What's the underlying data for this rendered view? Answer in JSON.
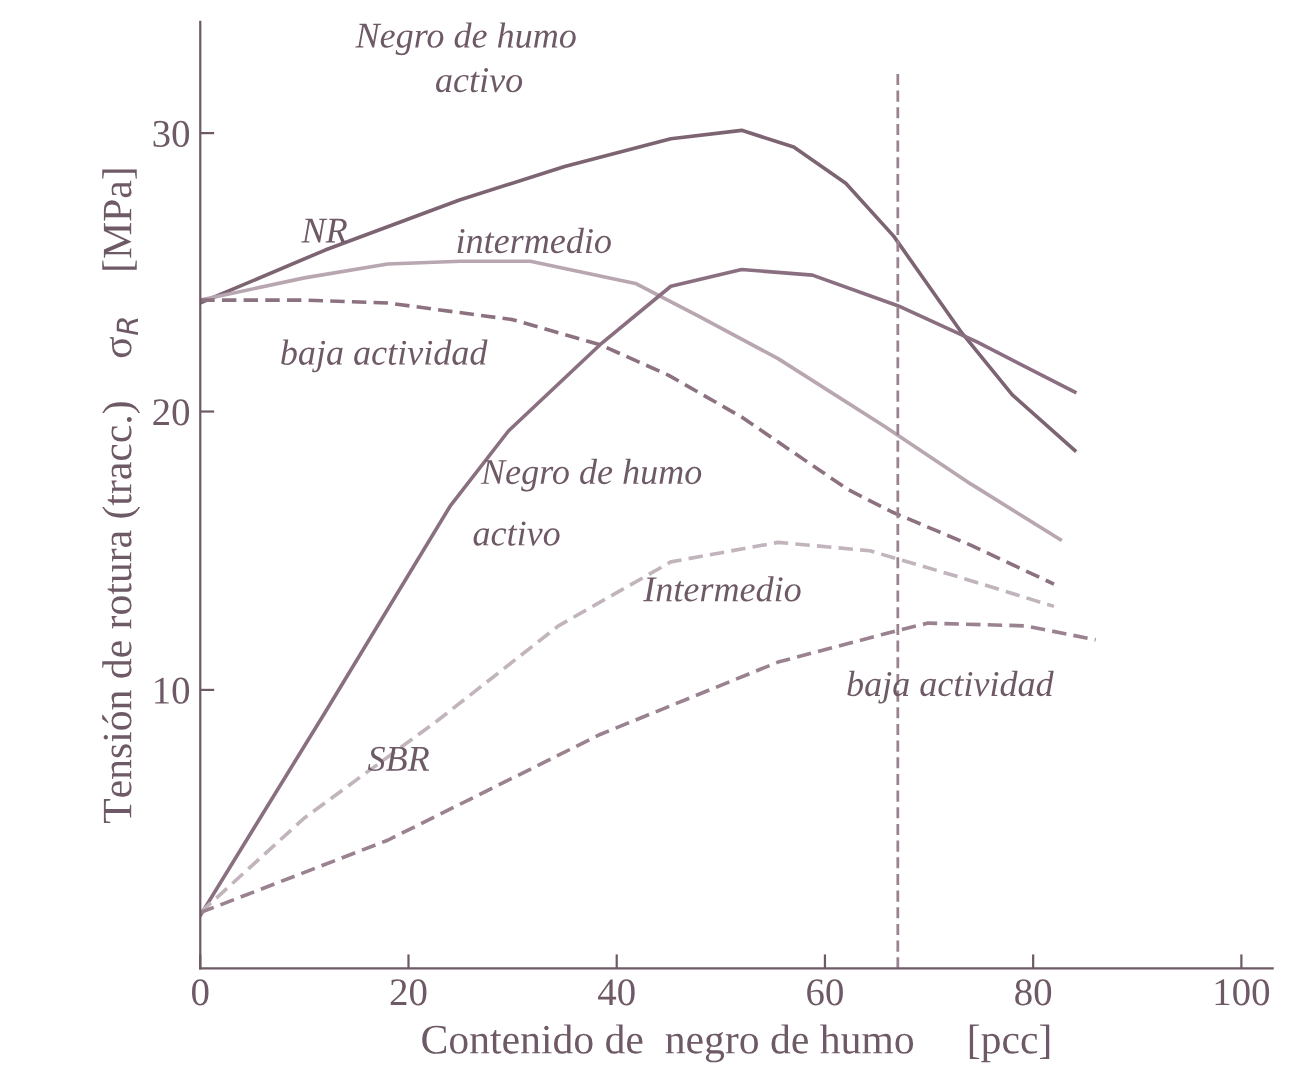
{
  "chart_data": {
    "type": "line",
    "xlabel": "Contenido de  negro de humo     [pcc]",
    "ylabel": "Tensión de rotura (tracc.)    σ$_{R}$    [MPa]",
    "xlim": [
      0,
      103
    ],
    "ylim": [
      0,
      34
    ],
    "xticks": [
      0,
      20,
      40,
      60,
      80,
      100
    ],
    "yticks": [
      10,
      20,
      30
    ],
    "grid": false,
    "legend": false,
    "marker": "none",
    "series": [
      {
        "color": "#7d6473",
        "line_style": "solid",
        "x": [
          0,
          12,
          24.9,
          35,
          45.2,
          52,
          57,
          62,
          66.6,
          73,
          78,
          84
        ],
        "values": [
          23.9,
          25.8,
          27.6,
          28.8,
          29.8,
          30.1,
          29.5,
          28.2,
          26.3,
          22.9,
          20.6,
          18.6
        ]
      },
      {
        "color": "#b8a6b0",
        "line_style": "solid",
        "x": [
          0,
          10,
          18,
          25,
          31.7,
          41.8,
          48,
          55.5,
          65.6,
          74,
          82.6
        ],
        "values": [
          24,
          24.8,
          25.3,
          25.4,
          25.4,
          24.6,
          23.4,
          21.9,
          19.5,
          17.4,
          15.4
        ]
      },
      {
        "color": "#8c7280",
        "line_style": "dashed",
        "x": [
          0,
          10,
          18,
          30,
          38.4,
          45,
          52,
          62.2,
          66.4,
          74,
          82
        ],
        "values": [
          24,
          24,
          23.9,
          23.3,
          22.4,
          21.3,
          19.8,
          17.2,
          16.4,
          15.2,
          13.8
        ]
      },
      {
        "color": "#8a6f80",
        "line_style": "solid",
        "x": [
          0,
          12,
          24,
          29.6,
          38.4,
          45.2,
          52,
          58.8,
          67,
          74.6,
          84
        ],
        "values": [
          1.9,
          9.2,
          16.6,
          19.3,
          22.4,
          24.5,
          25.1,
          24.9,
          23.8,
          22.5,
          20.7
        ]
      },
      {
        "color": "#c2b4bc",
        "line_style": "dashed",
        "x": [
          0,
          10,
          22.8,
          34.4,
          45.2,
          55.5,
          64.3,
          72.5,
          82
        ],
        "values": [
          2,
          5.4,
          8.9,
          12.3,
          14.6,
          15.3,
          15.0,
          14.1,
          13.0
        ]
      },
      {
        "color": "#9a8290",
        "line_style": "dashed",
        "x": [
          0,
          18,
          38.4,
          55.5,
          65.6,
          69.9,
          79.3,
          86
        ],
        "values": [
          2,
          4.6,
          8.4,
          11.0,
          12.0,
          12.4,
          12.3,
          11.8
        ]
      }
    ],
    "ref_lines": [
      {
        "axis": "x",
        "value": 67,
        "color": "#9a8290",
        "line_style": "dashed"
      }
    ],
    "annotations": [
      "Negro de humo",
      "activo",
      "NR",
      "intermedio",
      "baja actividad",
      "Negro de humo",
      "activo",
      "Intermedio",
      "SBR",
      "baja actividad"
    ]
  }
}
